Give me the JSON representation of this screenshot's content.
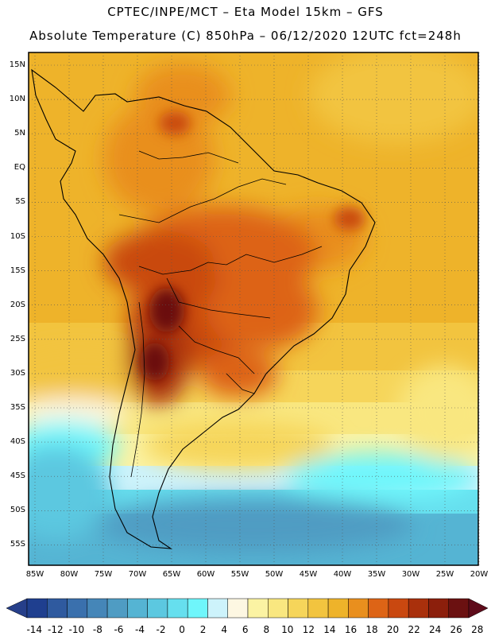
{
  "header": {
    "line1": "CPTEC/INPE/MCT –   Eta Model 15km – GFS",
    "line2": "Absolute Temperature (C) 850hPa – 06/12/2020 12UTC fct=248h"
  },
  "map": {
    "lat_labels": [
      "15N",
      "10N",
      "5N",
      "EQ",
      "5S",
      "10S",
      "15S",
      "20S",
      "25S",
      "30S",
      "35S",
      "40S",
      "45S",
      "50S",
      "55S"
    ],
    "lon_labels": [
      "85W",
      "80W",
      "75W",
      "70W",
      "65W",
      "60W",
      "55W",
      "50W",
      "45W",
      "40W",
      "35W",
      "30W",
      "25W",
      "20W"
    ]
  },
  "colorbar": {
    "labels": [
      "-14",
      "-12",
      "-10",
      "-8",
      "-6",
      "-4",
      "-2",
      "0",
      "2",
      "4",
      "6",
      "8",
      "10",
      "12",
      "14",
      "16",
      "18",
      "20",
      "22",
      "24",
      "26",
      "28"
    ],
    "colors": [
      "#1f3f8f",
      "#2f5a9f",
      "#3a70ad",
      "#4586b8",
      "#4f9cc3",
      "#55b4d3",
      "#5cc8e0",
      "#66dfee",
      "#6ff6fb",
      "#cdf3fb",
      "#fdf7e2",
      "#fbf3a3",
      "#f9e780",
      "#f6d55a",
      "#f2c43f",
      "#eeb32a",
      "#e98f1e",
      "#dd6416",
      "#c94810",
      "#a9300c",
      "#8c1f0c",
      "#6b1111"
    ]
  }
}
